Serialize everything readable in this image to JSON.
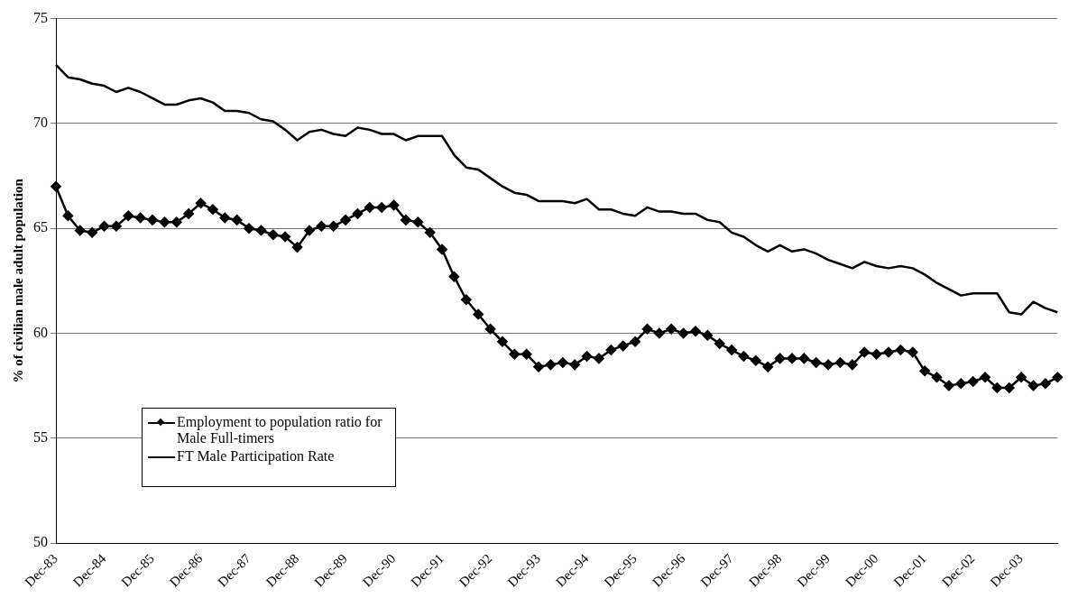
{
  "chart_data": {
    "type": "line",
    "ylabel": "% of civilian male adult population",
    "categories": [
      "Dec-83",
      null,
      null,
      null,
      "Dec-84",
      null,
      null,
      null,
      "Dec-85",
      null,
      null,
      null,
      "Dec-86",
      null,
      null,
      null,
      "Dec-87",
      null,
      null,
      null,
      "Dec-88",
      null,
      null,
      null,
      "Dec-89",
      null,
      null,
      null,
      "Dec-90",
      null,
      null,
      null,
      "Dec-91",
      null,
      null,
      null,
      "Dec-92",
      null,
      null,
      null,
      "Dec-93",
      null,
      null,
      null,
      "Dec-94",
      null,
      null,
      null,
      "Dec-95",
      null,
      null,
      null,
      "Dec-96",
      null,
      null,
      null,
      "Dec-97",
      null,
      null,
      null,
      "Dec-98",
      null,
      null,
      null,
      "Dec-99",
      null,
      null,
      null,
      "Dec-00",
      null,
      null,
      null,
      "Dec-01",
      null,
      null,
      null,
      "Dec-02",
      null,
      null,
      null,
      "Dec-03",
      null,
      null,
      null
    ],
    "series": [
      {
        "name": "Employment to population ratio for Male Full-timers",
        "color": "#000000",
        "marker": "diamond",
        "values": [
          67.0,
          65.6,
          64.9,
          64.8,
          65.1,
          65.1,
          65.6,
          65.5,
          65.4,
          65.3,
          65.3,
          65.7,
          66.2,
          65.9,
          65.5,
          65.4,
          65.0,
          64.9,
          64.7,
          64.6,
          64.1,
          64.9,
          65.1,
          65.1,
          65.4,
          65.7,
          66.0,
          66.0,
          66.1,
          65.4,
          65.3,
          64.8,
          64.0,
          62.7,
          61.6,
          60.9,
          60.2,
          59.6,
          59.0,
          59.0,
          58.4,
          58.5,
          58.6,
          58.5,
          58.9,
          58.8,
          59.2,
          59.4,
          59.6,
          60.2,
          60.0,
          60.2,
          60.0,
          60.1,
          59.9,
          59.5,
          59.2,
          58.9,
          58.7,
          58.4,
          58.8,
          58.8,
          58.8,
          58.6,
          58.5,
          58.6,
          58.5,
          59.1,
          59.0,
          59.1,
          59.2,
          59.1,
          58.2,
          57.9,
          57.5,
          57.6,
          57.7,
          57.9,
          57.4,
          57.4,
          57.9,
          57.5,
          57.6,
          57.9
        ]
      },
      {
        "name": "FT Male Participation Rate",
        "color": "#000000",
        "marker": "none",
        "values": [
          72.8,
          72.2,
          72.1,
          71.9,
          71.8,
          71.5,
          71.7,
          71.5,
          71.2,
          70.9,
          70.9,
          71.1,
          71.2,
          71.0,
          70.6,
          70.6,
          70.5,
          70.2,
          70.1,
          69.7,
          69.2,
          69.6,
          69.7,
          69.5,
          69.4,
          69.8,
          69.7,
          69.5,
          69.5,
          69.2,
          69.4,
          69.4,
          69.4,
          68.5,
          67.9,
          67.8,
          67.4,
          67.0,
          66.7,
          66.6,
          66.3,
          66.3,
          66.3,
          66.2,
          66.4,
          65.9,
          65.9,
          65.7,
          65.6,
          66.0,
          65.8,
          65.8,
          65.7,
          65.7,
          65.4,
          65.3,
          64.8,
          64.6,
          64.2,
          63.9,
          64.2,
          63.9,
          64.0,
          63.8,
          63.5,
          63.3,
          63.1,
          63.4,
          63.2,
          63.1,
          63.2,
          63.1,
          62.8,
          62.4,
          62.1,
          61.8,
          61.9,
          61.9,
          61.9,
          61.0,
          60.9,
          61.5,
          61.2,
          61.0
        ]
      }
    ],
    "ylim": [
      50,
      75
    ],
    "yticks": [
      50,
      55,
      60,
      65,
      70,
      75
    ],
    "grid": "y",
    "legend": "bottom left"
  }
}
